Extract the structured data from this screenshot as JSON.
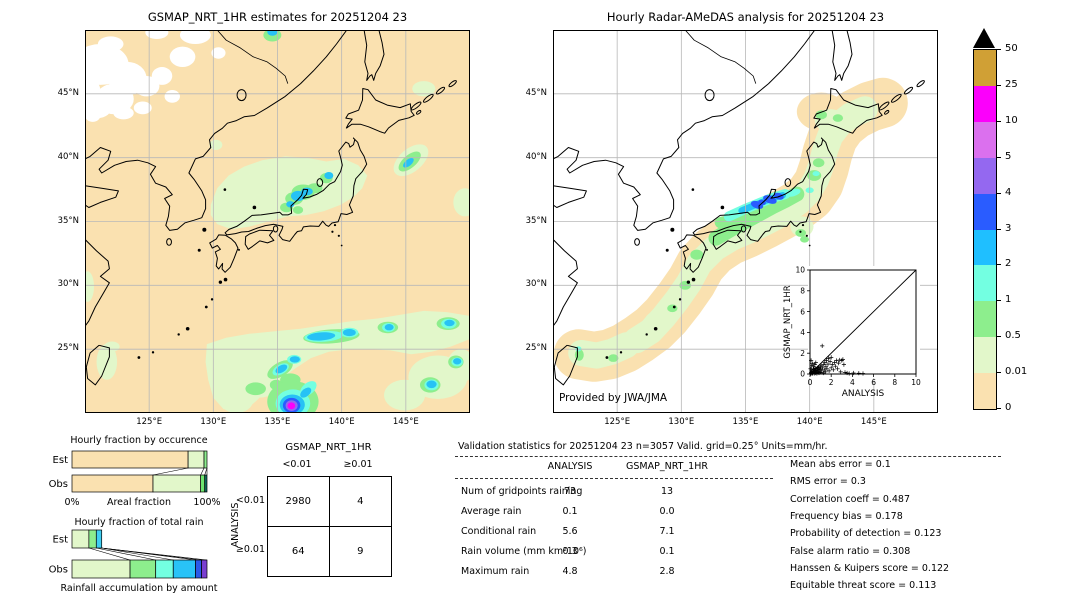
{
  "maps": {
    "left": {
      "title": "GSMAP_NRT_1HR estimates for 20251204 23",
      "x_tick_labels": [
        "125°E",
        "130°E",
        "135°E",
        "140°E",
        "145°E"
      ],
      "y_tick_labels": [
        "45°N",
        "40°N",
        "35°N",
        "30°N",
        "25°N"
      ],
      "lon_range": [
        120,
        150
      ],
      "lat_range": [
        20,
        50
      ]
    },
    "right": {
      "title": "Hourly Radar-AMeDAS analysis for 20251204 23",
      "credit": "Provided by JWA/JMA",
      "x_tick_labels": [
        "125°E",
        "130°E",
        "135°E",
        "140°E",
        "145°E"
      ],
      "y_tick_labels": [
        "45°N",
        "40°N",
        "35°N",
        "30°N",
        "25°N"
      ],
      "lon_range": [
        120,
        150
      ],
      "lat_range": [
        20,
        50
      ]
    }
  },
  "colorbar": {
    "tick_labels_top_to_bottom": [
      "50",
      "25",
      "10",
      "5",
      "4",
      "3",
      "2",
      "1",
      "0.5",
      "0.01",
      "0"
    ],
    "colors_top_to_bottom": [
      "#D0A035",
      "#FB00FB",
      "#DB70EE",
      "#9468F0",
      "#2A5CFF",
      "#1FBFFF",
      "#73FFE1",
      "#8DEE8D",
      "#E2F7CA",
      "#FAE1B0"
    ],
    "overflow_marker": "black-triangle"
  },
  "chart_data": [
    {
      "id": "occurrence",
      "type": "bar",
      "title": "Hourly fraction by occurence",
      "xlabel": "Areal fraction",
      "x_axis_labels": [
        "0%",
        "100%"
      ],
      "categories": [
        "Est",
        "Obs"
      ],
      "rows": [
        {
          "name": "Est",
          "segments": [
            {
              "pct": 86,
              "color": "#FAE1B0"
            },
            {
              "pct": 11.8,
              "color": "#E2F7CA"
            },
            {
              "pct": 2.2,
              "color": "#8DEE8D"
            }
          ]
        },
        {
          "name": "Obs",
          "segments": [
            {
              "pct": 60,
              "color": "#FAE1B0"
            },
            {
              "pct": 35.3,
              "color": "#E2F7CA"
            },
            {
              "pct": 3,
              "color": "#6FE56F"
            },
            {
              "pct": 1.7,
              "color": "#0F6B5F"
            }
          ]
        }
      ]
    },
    {
      "id": "totalrain",
      "type": "bar",
      "title": "Hourly fraction of total rain",
      "xlabel": "Rainfall accumulation by amount",
      "categories": [
        "Est",
        "Obs"
      ],
      "rows": [
        {
          "name": "Est",
          "segments": [
            {
              "pct": 12.5,
              "color": "#E2F7CA"
            },
            {
              "pct": 5.5,
              "color": "#8DEE8D"
            },
            {
              "pct": 4,
              "color": "#3FCEF2"
            }
          ]
        },
        {
          "name": "Obs",
          "segments": [
            {
              "pct": 43,
              "color": "#E2F7CA"
            },
            {
              "pct": 19,
              "color": "#8DEE8D"
            },
            {
              "pct": 13,
              "color": "#73FFE1"
            },
            {
              "pct": 16.5,
              "color": "#29C3F7"
            },
            {
              "pct": 4.5,
              "color": "#2B5AE8"
            },
            {
              "pct": 4,
              "color": "#7A3FD0"
            }
          ]
        }
      ]
    },
    {
      "id": "inset_scatter",
      "type": "scatter",
      "xlabel": "ANALYSIS",
      "ylabel": "GSMAP_NRT_1HR",
      "xlim": [
        0,
        10
      ],
      "ylim": [
        0,
        10
      ],
      "ticks": [
        0,
        2,
        4,
        6,
        8,
        10
      ],
      "identity_line": true,
      "points": [
        [
          0.05,
          0.02
        ],
        [
          0.1,
          0.05
        ],
        [
          0.1,
          0.15
        ],
        [
          0.15,
          0.4
        ],
        [
          0.2,
          0.1
        ],
        [
          0.2,
          0.25
        ],
        [
          0.25,
          0.05
        ],
        [
          0.3,
          0.3
        ],
        [
          0.3,
          0.5
        ],
        [
          0.35,
          0.15
        ],
        [
          0.4,
          0.05
        ],
        [
          0.4,
          0.45
        ],
        [
          0.45,
          0.25
        ],
        [
          0.5,
          0.1
        ],
        [
          0.5,
          0.55
        ],
        [
          0.55,
          0.35
        ],
        [
          0.6,
          0.15
        ],
        [
          0.6,
          0.5
        ],
        [
          0.65,
          0.05
        ],
        [
          0.7,
          0.3
        ],
        [
          0.7,
          0.6
        ],
        [
          0.75,
          0.45
        ],
        [
          0.8,
          0.2
        ],
        [
          0.8,
          0.65
        ],
        [
          0.85,
          0.1
        ],
        [
          0.9,
          0.4
        ],
        [
          0.95,
          0.7
        ],
        [
          1.0,
          0.15
        ],
        [
          1.0,
          0.5
        ],
        [
          1.05,
          0.85
        ],
        [
          1.1,
          0.3
        ],
        [
          1.15,
          2.7
        ],
        [
          1.2,
          0.6
        ],
        [
          1.25,
          0.1
        ],
        [
          1.3,
          0.9
        ],
        [
          1.35,
          0.4
        ],
        [
          1.4,
          1.1
        ],
        [
          1.45,
          0.2
        ],
        [
          1.5,
          0.7
        ],
        [
          1.55,
          1.3
        ],
        [
          1.6,
          0.5
        ],
        [
          1.7,
          0.95
        ],
        [
          1.75,
          1.5
        ],
        [
          1.8,
          0.3
        ],
        [
          1.9,
          1.2
        ],
        [
          2.0,
          0.6
        ],
        [
          2.0,
          1.6
        ],
        [
          2.1,
          0.9
        ],
        [
          2.2,
          0.4
        ],
        [
          2.3,
          1.1
        ],
        [
          2.4,
          0.75
        ],
        [
          2.5,
          1.3
        ],
        [
          2.6,
          0.5
        ],
        [
          2.7,
          1.05
        ],
        [
          2.8,
          1.35
        ],
        [
          2.9,
          0.2
        ],
        [
          3.0,
          1.3
        ],
        [
          3.1,
          1.4
        ],
        [
          3.2,
          0.9
        ],
        [
          3.3,
          0.15
        ],
        [
          3.5,
          0.1
        ],
        [
          3.7,
          0.05
        ],
        [
          4.1,
          0.1
        ],
        [
          4.6,
          0.08
        ],
        [
          5.0,
          0.05
        ],
        [
          0.15,
          0.8
        ],
        [
          0.25,
          1.0
        ],
        [
          0.1,
          1.3
        ],
        [
          0.35,
          0.7
        ],
        [
          0.05,
          0.5
        ],
        [
          0.45,
          0.9
        ],
        [
          0.55,
          1.1
        ]
      ]
    },
    {
      "id": "contingency",
      "type": "table",
      "col_title": "GSMAP_NRT_1HR",
      "row_title": "ANALYSIS",
      "col_labels": [
        "<0.01",
        "≥0.01"
      ],
      "row_labels": [
        "<0.01",
        "≥0.01"
      ],
      "values": [
        [
          "2980",
          "4"
        ],
        [
          "64",
          "9"
        ]
      ]
    },
    {
      "id": "validation",
      "type": "table",
      "title": "Validation statistics for 20251204 23  n=3057 Valid. grid=0.25° Units=mm/hr.",
      "columns": [
        "ANALYSIS",
        "GSMAP_NRT_1HR"
      ],
      "rows": [
        {
          "label": "Num of gridpoints raining",
          "values": [
            "73",
            "13"
          ]
        },
        {
          "label": "Average rain",
          "values": [
            "0.1",
            "0.0"
          ]
        },
        {
          "label": "Conditional rain",
          "values": [
            "5.6",
            "7.1"
          ]
        },
        {
          "label": "Rain volume (mm km²10⁶)",
          "values": [
            "0.3",
            "0.1"
          ]
        },
        {
          "label": "Maximum rain",
          "values": [
            "4.8",
            "2.8"
          ]
        }
      ],
      "metrics": [
        {
          "label": "Mean abs error",
          "value": "0.1"
        },
        {
          "label": "RMS error",
          "value": "0.3"
        },
        {
          "label": "Correlation coeff",
          "value": "0.487"
        },
        {
          "label": "Frequency bias",
          "value": "0.178"
        },
        {
          "label": "Probability of detection",
          "value": "0.123"
        },
        {
          "label": "False alarm ratio",
          "value": "0.308"
        },
        {
          "label": "Hanssen & Kuipers score",
          "value": "0.122"
        },
        {
          "label": "Equitable threat score",
          "value": "0.113"
        }
      ]
    }
  ]
}
